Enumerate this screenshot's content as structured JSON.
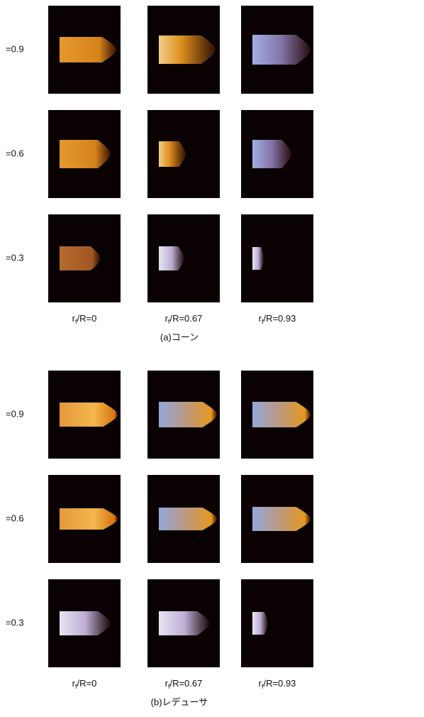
{
  "panels": [
    {
      "rows": [
        "=0.9",
        "=0.6",
        "=0.3"
      ],
      "columns": [
        [
          "r",
          "f",
          "/R=0"
        ],
        [
          "r",
          "f",
          "/R=0.67"
        ],
        [
          "r",
          "f",
          "/R=0.93"
        ]
      ],
      "caption": "(a)コーン"
    },
    {
      "rows": [
        "=0.9",
        "=0.6",
        "=0.3"
      ],
      "columns": [
        [
          "r",
          "f",
          "/R=0"
        ],
        [
          "r",
          "f",
          "/R=0.67"
        ],
        [
          "r",
          "f",
          "/R=0.93"
        ]
      ],
      "caption": "(b)レデューサ"
    }
  ]
}
